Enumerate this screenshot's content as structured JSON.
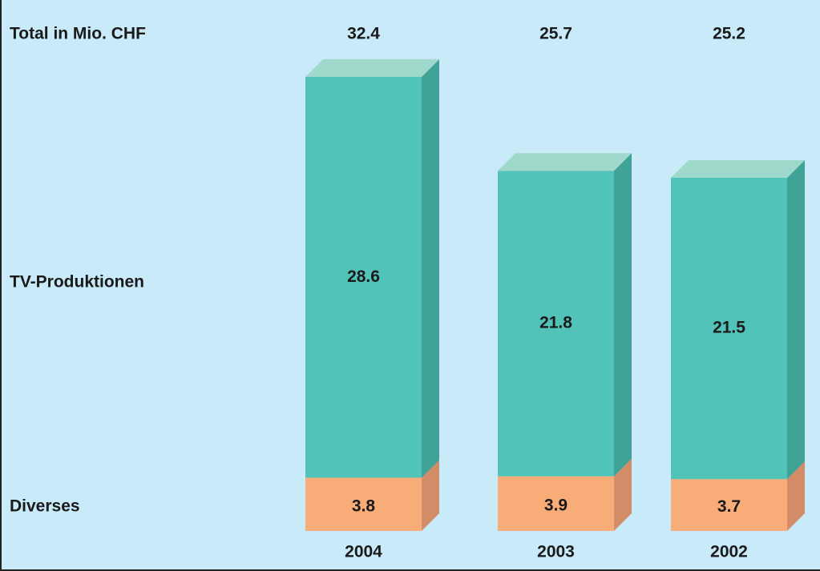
{
  "chart_data": {
    "type": "bar",
    "stacked": true,
    "categories": [
      "2004",
      "2003",
      "2002"
    ],
    "totals_label": "Total in Mio. CHF",
    "totals": [
      32.4,
      25.7,
      25.2
    ],
    "series": [
      {
        "name": "Diverses",
        "color": "#f8ac78",
        "side_color": "#d28c68",
        "top_color": "#f8c8a0",
        "values": [
          3.8,
          3.9,
          3.7
        ]
      },
      {
        "name": "TV-Produktionen",
        "color": "#52c3b8",
        "side_color": "#3fa398",
        "top_color": "#9fd9cc",
        "values": [
          28.6,
          21.8,
          21.5
        ]
      }
    ]
  }
}
